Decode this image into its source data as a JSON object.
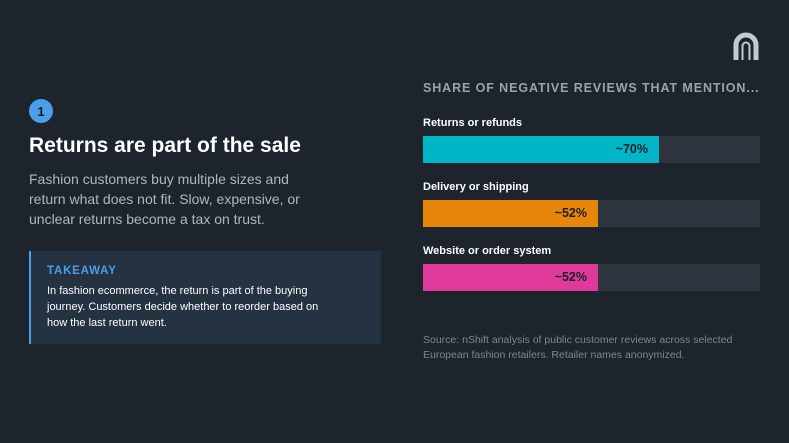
{
  "slide": {
    "step_number": "1",
    "headline": "Returns are part of the sale",
    "body": "Fashion customers buy multiple sizes and return what does not fit. Slow, expensive, or unclear returns become a tax on trust.",
    "takeaway_label": "TAKEAWAY",
    "takeaway_text": "In fashion ecommerce, the return is part of the buying journey. Customers decide whether to reorder based on how the last return went.",
    "logo_icon": "nshift-logo-icon",
    "accent_color": "#4a9fe8",
    "background_color": "#1e242c"
  },
  "chart_data": {
    "type": "bar",
    "orientation": "horizontal",
    "title": "SHARE OF NEGATIVE REVIEWS THAT MENTION...",
    "categories": [
      "Returns or refunds",
      "Delivery or shipping",
      "Website or order system"
    ],
    "values": [
      70,
      52,
      52
    ],
    "value_labels": [
      "~70%",
      "~52%",
      "~52%"
    ],
    "colors": [
      "#00b5c8",
      "#e8860a",
      "#e0399c"
    ],
    "track_color": "#2d343e",
    "xlim": [
      0,
      100
    ],
    "unit": "%",
    "grid": false,
    "source": "Source: nShift analysis of public customer reviews across selected European fashion retailers. Retailer names anonymized."
  }
}
